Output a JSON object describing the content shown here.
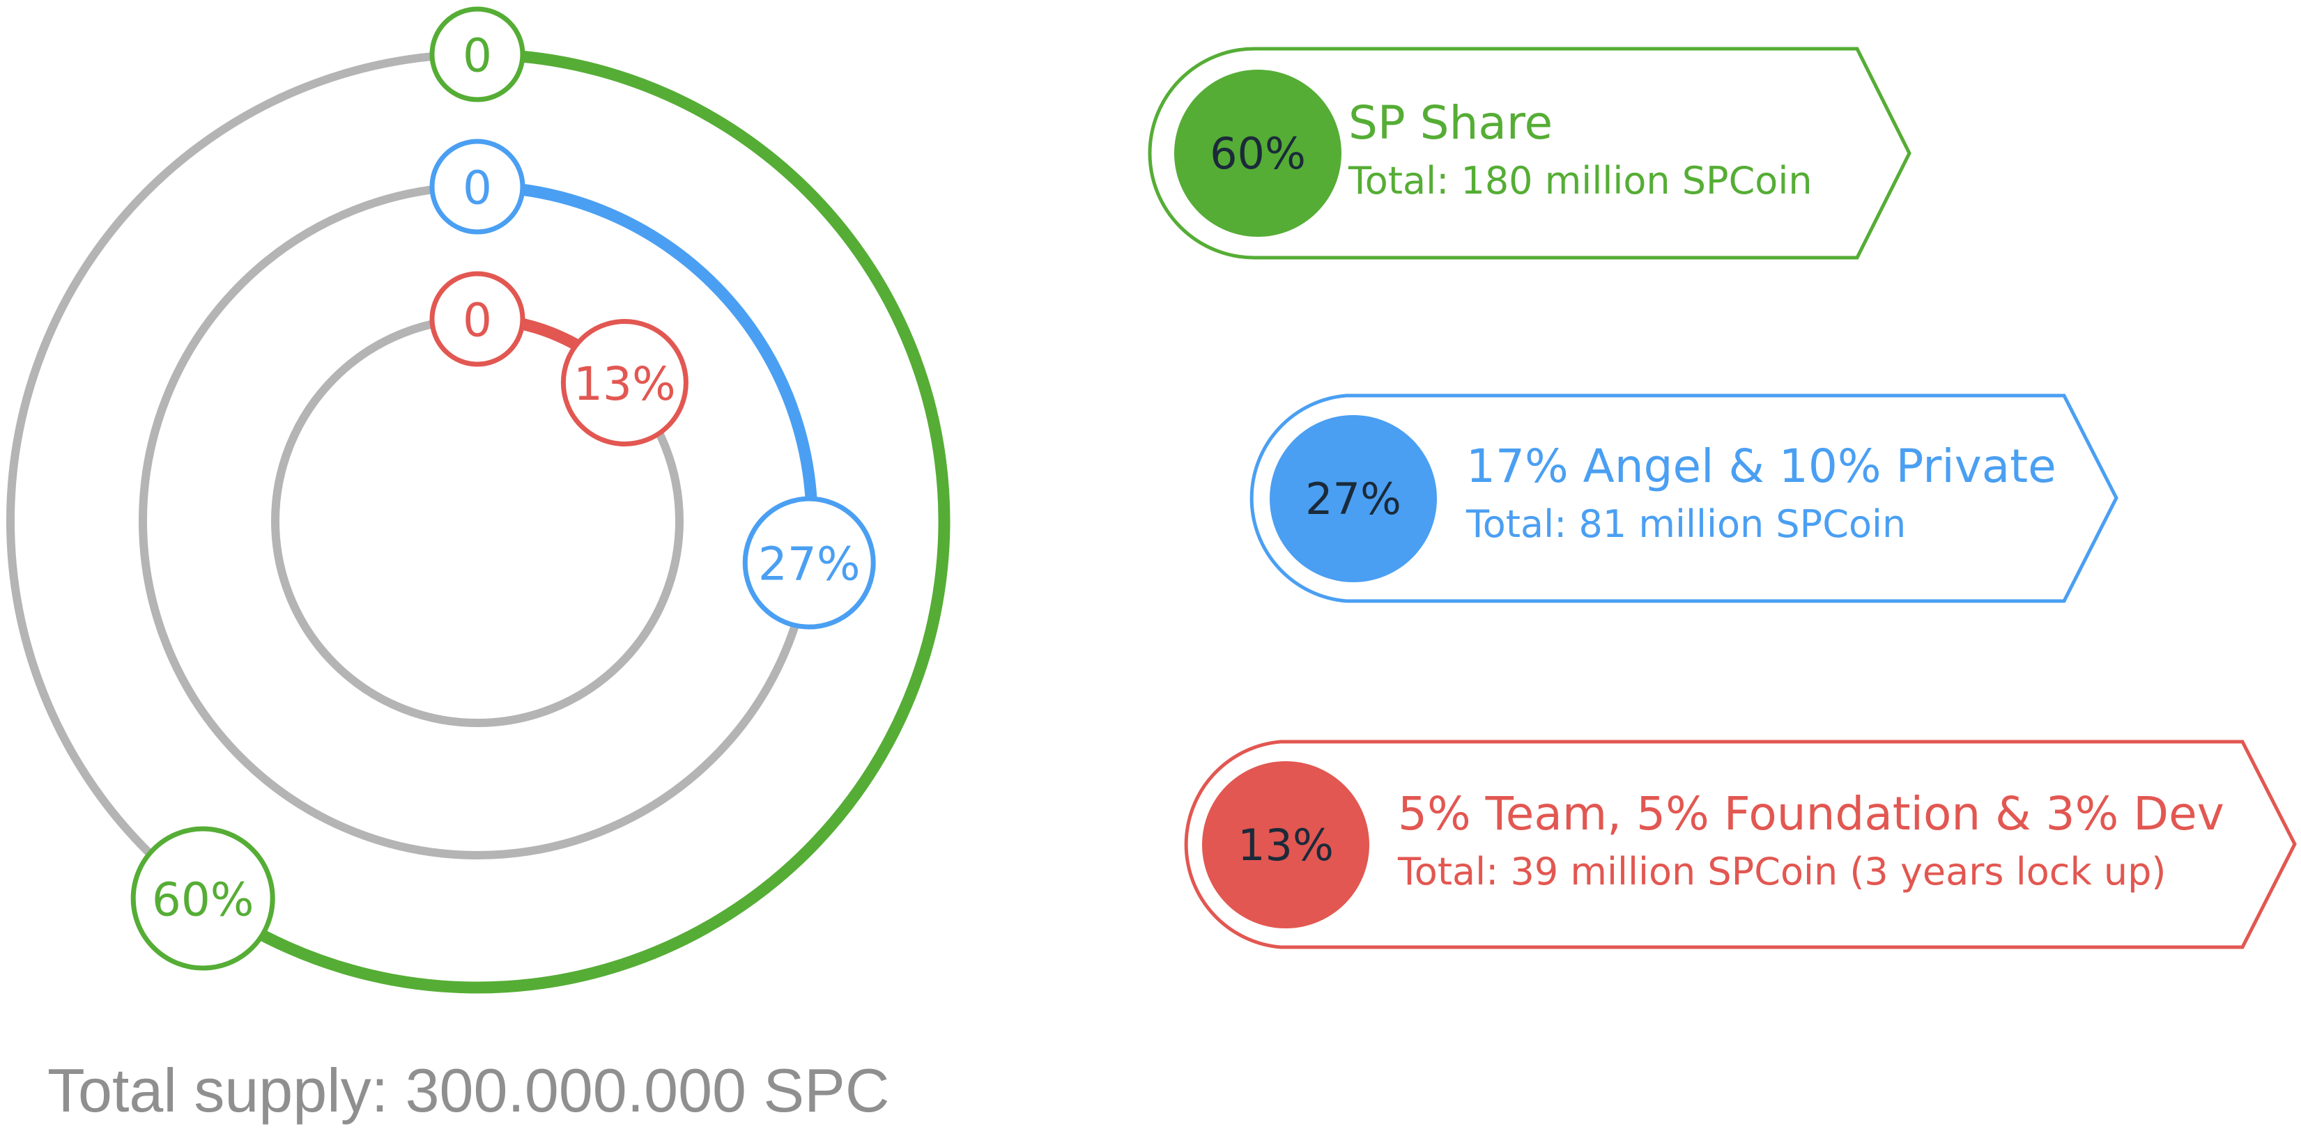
{
  "colors": {
    "green": "#55ad35",
    "blue": "#4a9ff2",
    "red": "#e25751",
    "track": "#b4b4b4",
    "text_dark": "#1b2a3a",
    "supply_text": "#8f8f8f"
  },
  "chart_data": {
    "type": "radial-progress",
    "title": "",
    "unit": "%",
    "rings": [
      {
        "key": "green",
        "start_label": "0",
        "value": 60,
        "end_label": "60%",
        "color": "#55ad35"
      },
      {
        "key": "blue",
        "start_label": "0",
        "value": 27,
        "end_label": "27%",
        "color": "#4a9ff2"
      },
      {
        "key": "red",
        "start_label": "0",
        "value": 13,
        "end_label": "13%",
        "color": "#e25751"
      }
    ]
  },
  "legend": [
    {
      "percent": "60%",
      "title": "SP Share",
      "subtitle": "Total: 180 million SPCoin",
      "color": "#55ad35"
    },
    {
      "percent": "27%",
      "title": "17% Angel & 10% Private",
      "subtitle": "Total: 81 million SPCoin",
      "color": "#4a9ff2"
    },
    {
      "percent": "13%",
      "title": "5% Team, 5% Foundation & 3% Dev",
      "subtitle": "Total: 39 million SPCoin (3 years lock up)",
      "color": "#e25751"
    }
  ],
  "total_supply": "Total supply: 300.000.000 SPC"
}
